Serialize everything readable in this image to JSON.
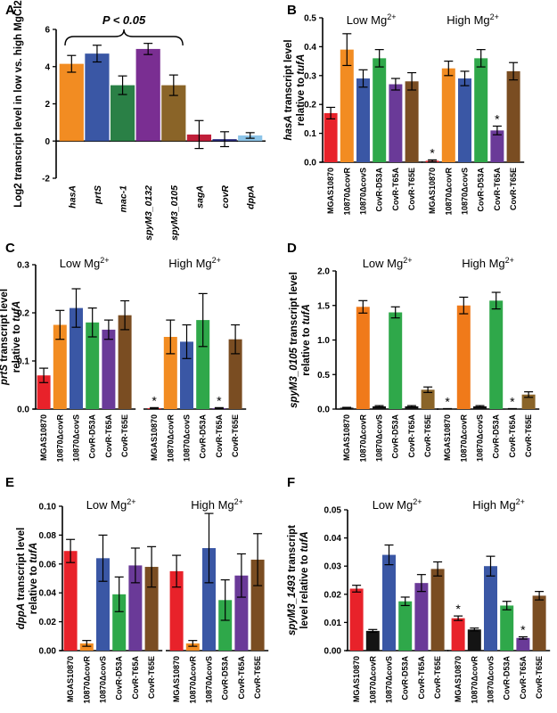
{
  "colors": {
    "red": "#e8222a",
    "orange": "#f28c22",
    "orange2": "#f07a1a",
    "blue": "#3a57a5",
    "green": "#2fa84a",
    "purple": "#6a3a98",
    "brown": "#7a4d22",
    "tan": "#8a6428",
    "darkgreen": "#2a8046",
    "magenta": "#7a2e92",
    "crimson": "#c01f3a",
    "navy": "#27297a",
    "lightblue": "#8cc4e8",
    "black": "#141414"
  },
  "chart_data": [
    {
      "panel": "A",
      "type": "bar",
      "categories": [
        "hasA",
        "prtS",
        "mac-1",
        "spyM3_0132",
        "spyM3_0105",
        "sagA",
        "covR",
        "dppA"
      ],
      "values": [
        4.15,
        4.7,
        3.0,
        4.95,
        3.0,
        0.35,
        0.1,
        0.3
      ],
      "errors": [
        0.45,
        0.45,
        0.5,
        0.3,
        0.55,
        0.75,
        0.4,
        0.15
      ],
      "colors": [
        "orange",
        "blue",
        "darkgreen",
        "magenta",
        "tan",
        "crimson",
        "navy",
        "lightblue"
      ],
      "ylabel": "Log2 transcript level in low vs. high MgCl2",
      "ylim": [
        -2,
        6
      ],
      "yticks": [
        "-2",
        "0",
        "2",
        "4",
        "6"
      ],
      "annotation": "P < 0.05"
    },
    {
      "panel": "B",
      "type": "bar",
      "groups": [
        "Low Mg",
        "High Mg"
      ],
      "categories": [
        "MGAS10870",
        "10870ΔcovR",
        "10870ΔcovS",
        "CovR-D53A",
        "CovR-T65A",
        "CovR-T65E"
      ],
      "values": [
        [
          0.17,
          0.39,
          0.29,
          0.36,
          0.27,
          0.28
        ],
        [
          0.005,
          0.325,
          0.29,
          0.36,
          0.11,
          0.315
        ]
      ],
      "errors": [
        [
          0.02,
          0.055,
          0.03,
          0.03,
          0.02,
          0.03
        ],
        [
          0.003,
          0.025,
          0.025,
          0.03,
          0.015,
          0.03
        ]
      ],
      "stars": [
        [],
        [
          0,
          4
        ]
      ],
      "colors": [
        "red",
        "orange",
        "blue",
        "green",
        "purple",
        "brown"
      ],
      "ylabel_pre": "hasA",
      "ylabel_mid": " transcript level",
      "ylabel2_pre": "relative to ",
      "ylabel2_gene": "tufA",
      "ylim": [
        0,
        0.5
      ],
      "yticks": [
        "0.0",
        "0.1",
        "0.2",
        "0.3",
        "0.4",
        "0.5"
      ]
    },
    {
      "panel": "C",
      "type": "bar",
      "groups": [
        "Low Mg",
        "High Mg"
      ],
      "categories": [
        "MGAS10870",
        "10870ΔcovR",
        "10870ΔcovS",
        "CovR-D53A",
        "CovR-T65A",
        "CovR-T65E"
      ],
      "values": [
        [
          0.07,
          0.175,
          0.21,
          0.18,
          0.165,
          0.195
        ],
        [
          0.002,
          0.15,
          0.14,
          0.185,
          0.002,
          0.145
        ]
      ],
      "errors": [
        [
          0.015,
          0.03,
          0.04,
          0.03,
          0.02,
          0.03
        ],
        [
          0.001,
          0.035,
          0.035,
          0.055,
          0.001,
          0.03
        ]
      ],
      "stars": [
        [],
        [
          0,
          4
        ]
      ],
      "colors": [
        "red",
        "orange",
        "blue",
        "green",
        "purple",
        "brown"
      ],
      "ylabel_pre": "prtS",
      "ylabel_mid": " transcript level",
      "ylabel2_pre": "relative to ",
      "ylabel2_gene": "tufA",
      "ylim": [
        0,
        0.3
      ],
      "yticks": [
        "0.0",
        "0.1",
        "0.2",
        "0.3"
      ]
    },
    {
      "panel": "D",
      "type": "bar",
      "groups": [
        "Low Mg",
        "High Mg"
      ],
      "categories": [
        "MGAS10870",
        "10870ΔcovR",
        "10870ΔcovS",
        "CovR-D53A",
        "CovR-T65A",
        "CovR-T65E"
      ],
      "values": [
        [
          0.02,
          1.48,
          0.04,
          1.4,
          0.04,
          0.28
        ],
        [
          0.005,
          1.5,
          0.04,
          1.57,
          0.005,
          0.21
        ]
      ],
      "errors": [
        [
          0.005,
          0.09,
          0.01,
          0.08,
          0.01,
          0.04
        ],
        [
          0.002,
          0.12,
          0.01,
          0.12,
          0.002,
          0.04
        ]
      ],
      "stars": [
        [],
        [
          0,
          4
        ]
      ],
      "colors": [
        "black",
        "orange2",
        "black",
        "green",
        "black",
        "tan"
      ],
      "ylabel_pre": "spyM3_0105",
      "ylabel_mid": " transcript level",
      "ylabel2_pre": "relative to ",
      "ylabel2_gene": "tufA",
      "ylim": [
        0,
        2.0
      ],
      "yticks": [
        "0.0",
        "0.5",
        "1.0",
        "1.5",
        "2.0"
      ]
    },
    {
      "panel": "E",
      "type": "bar",
      "groups": [
        "Low Mg",
        "High Mg"
      ],
      "categories": [
        "MGAS10870",
        "10870ΔcovR",
        "10870ΔcovS",
        "CovR-D53A",
        "CovR-T65A",
        "CovR-T65E"
      ],
      "values": [
        [
          0.069,
          0.005,
          0.064,
          0.039,
          0.059,
          0.058
        ],
        [
          0.055,
          0.005,
          0.071,
          0.035,
          0.052,
          0.063
        ]
      ],
      "errors": [
        [
          0.008,
          0.002,
          0.016,
          0.012,
          0.012,
          0.014
        ],
        [
          0.011,
          0.002,
          0.024,
          0.014,
          0.015,
          0.018
        ]
      ],
      "stars": [
        [],
        []
      ],
      "colors": [
        "red",
        "orange",
        "blue",
        "green",
        "purple",
        "brown"
      ],
      "ylabel_pre": "dppA",
      "ylabel_mid": " transcript level",
      "ylabel2_pre": "relative to ",
      "ylabel2_gene": "tufA",
      "ylim": [
        0,
        0.1
      ],
      "yticks": [
        "0.00",
        "0.02",
        "0.04",
        "0.06",
        "0.08",
        "0.10"
      ]
    },
    {
      "panel": "F",
      "type": "bar",
      "groups": [
        "Low Mg",
        "High Mg"
      ],
      "categories": [
        "MGAS10870",
        "10870ΔcovR",
        "10870ΔcovS",
        "CovR-D53A",
        "CovR-T65A",
        "CovR-T65E"
      ],
      "values": [
        [
          0.022,
          0.007,
          0.034,
          0.0175,
          0.024,
          0.029
        ],
        [
          0.0115,
          0.0075,
          0.03,
          0.016,
          0.0045,
          0.0195
        ]
      ],
      "errors": [
        [
          0.0012,
          0.0005,
          0.0035,
          0.0015,
          0.003,
          0.0025
        ],
        [
          0.0008,
          0.0005,
          0.0035,
          0.0015,
          0.0004,
          0.0015
        ]
      ],
      "stars": [
        [],
        [
          0,
          4
        ]
      ],
      "colors": [
        "red",
        "black",
        "blue",
        "green",
        "purple",
        "brown"
      ],
      "ylabel_pre": "spyM3_1493",
      "ylabel_mid": " transcript",
      "ylabel2_pre": "level relative to ",
      "ylabel2_gene": "tufA",
      "ylim": [
        0,
        0.05
      ],
      "yticks": [
        "0.00",
        "0.01",
        "0.02",
        "0.03",
        "0.04",
        "0.05"
      ]
    }
  ],
  "text": {
    "low_mg": "Low Mg",
    "high_mg": "High Mg",
    "mg_sup": "2+",
    "star": "*"
  }
}
